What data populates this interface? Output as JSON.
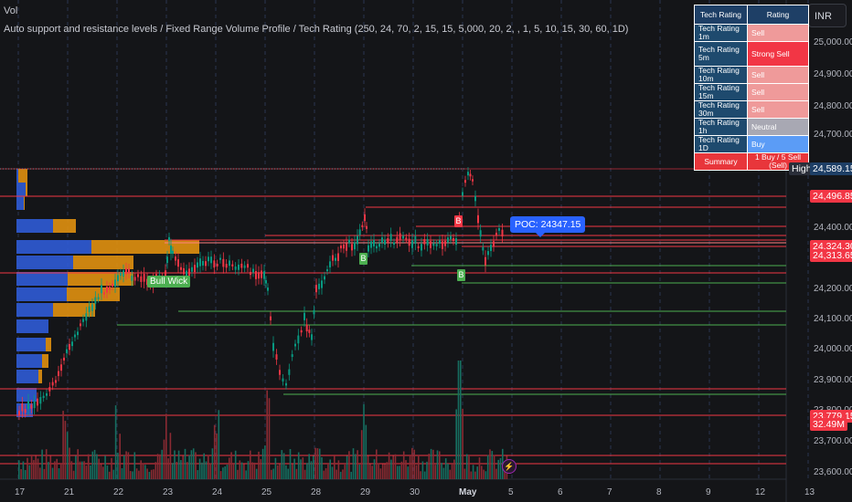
{
  "legend": {
    "vol": "Vol",
    "indicators": "Auto support and resistance levels / Fixed Range Volume Profile / Tech Rating (250, 24, 70, 2, 15, 15, 5,000, 20, 2, , 1, 5, 10, 15, 30, 60, 1D)"
  },
  "currency": "INR",
  "price_axis": [
    "25,000.00",
    "24,900.00",
    "24,800.00",
    "24,700.00",
    "24,400.00",
    "24,200.00",
    "24,100.00",
    "24,000.00",
    "23,900.00",
    "23,800.00",
    "23,700.00",
    "23,600.00"
  ],
  "time_axis": [
    "17",
    "21",
    "22",
    "23",
    "24",
    "25",
    "28",
    "29",
    "30",
    "May",
    "5",
    "6",
    "7",
    "8",
    "9",
    "12",
    "13"
  ],
  "tags": {
    "high_label": "High",
    "high_price": "24,589.15",
    "res1": "24,496.85",
    "cur1": "24,324.30",
    "cur2": "24,313.65",
    "low": "23,779.15",
    "vol": "32.49M"
  },
  "poc": "POC: 24347.15",
  "bull_wick": "Bull Wick",
  "signals": {
    "b1": "B",
    "b2": "B",
    "b3": "B"
  },
  "rating_table": {
    "header": [
      "Tech Rating",
      "Rating"
    ],
    "rows": [
      {
        "label": "Tech Rating 1m",
        "value": "Sell",
        "color": "#ef9a9a"
      },
      {
        "label": "Tech Rating 5m",
        "value": "Strong Sell",
        "color": "#f23645"
      },
      {
        "label": "Tech Rating 10m",
        "value": "Sell",
        "color": "#ef9a9a"
      },
      {
        "label": "Tech Rating 15m",
        "value": "Sell",
        "color": "#ef9a9a"
      },
      {
        "label": "Tech Rating 30m",
        "value": "Sell",
        "color": "#ef9a9a"
      },
      {
        "label": "Tech Rating 1h",
        "value": "Neutral",
        "color": "#a8a8b3"
      },
      {
        "label": "Tech Rating 1D",
        "value": "Buy",
        "color": "#5b9cf6"
      }
    ],
    "summary": [
      "Summary",
      "1 Buy / 5 Sell (Sell)"
    ]
  },
  "colors": {
    "up": "#089981",
    "down": "#f23645",
    "resistance": "#f23645",
    "support": "#4caf50",
    "profile_blue": "#2f5bd6",
    "profile_orange": "#e0900f"
  }
}
